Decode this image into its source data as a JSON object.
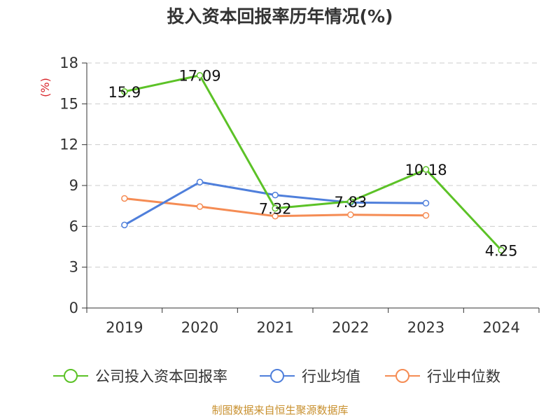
{
  "chart_data": {
    "type": "line",
    "title": "投入资本回报率历年情况(%)",
    "ylabel": "(%)",
    "xlabel": "",
    "categories": [
      "2019",
      "2020",
      "2021",
      "2022",
      "2023",
      "2024"
    ],
    "ylim": [
      0,
      18
    ],
    "yticks": [
      "0",
      "3",
      "6",
      "9",
      "12",
      "15",
      "18"
    ],
    "grid": true,
    "legend_position": "bottom",
    "series": [
      {
        "name": "公司投入资本回报率",
        "color": "#5cc227",
        "values": [
          15.9,
          17.09,
          7.32,
          7.83,
          10.18,
          4.25
        ],
        "labels": [
          "15.9",
          "17.09",
          "7.32",
          "7.83",
          "10.18",
          "4.25"
        ]
      },
      {
        "name": "行业均值",
        "color": "#4f7fdb",
        "values": [
          6.1,
          9.25,
          8.3,
          7.75,
          7.7,
          null
        ],
        "labels": []
      },
      {
        "name": "行业中位数",
        "color": "#f58c54",
        "values": [
          8.05,
          7.45,
          6.75,
          6.85,
          6.8,
          null
        ],
        "labels": []
      }
    ]
  },
  "source": "制图数据来自恒生聚源数据库"
}
